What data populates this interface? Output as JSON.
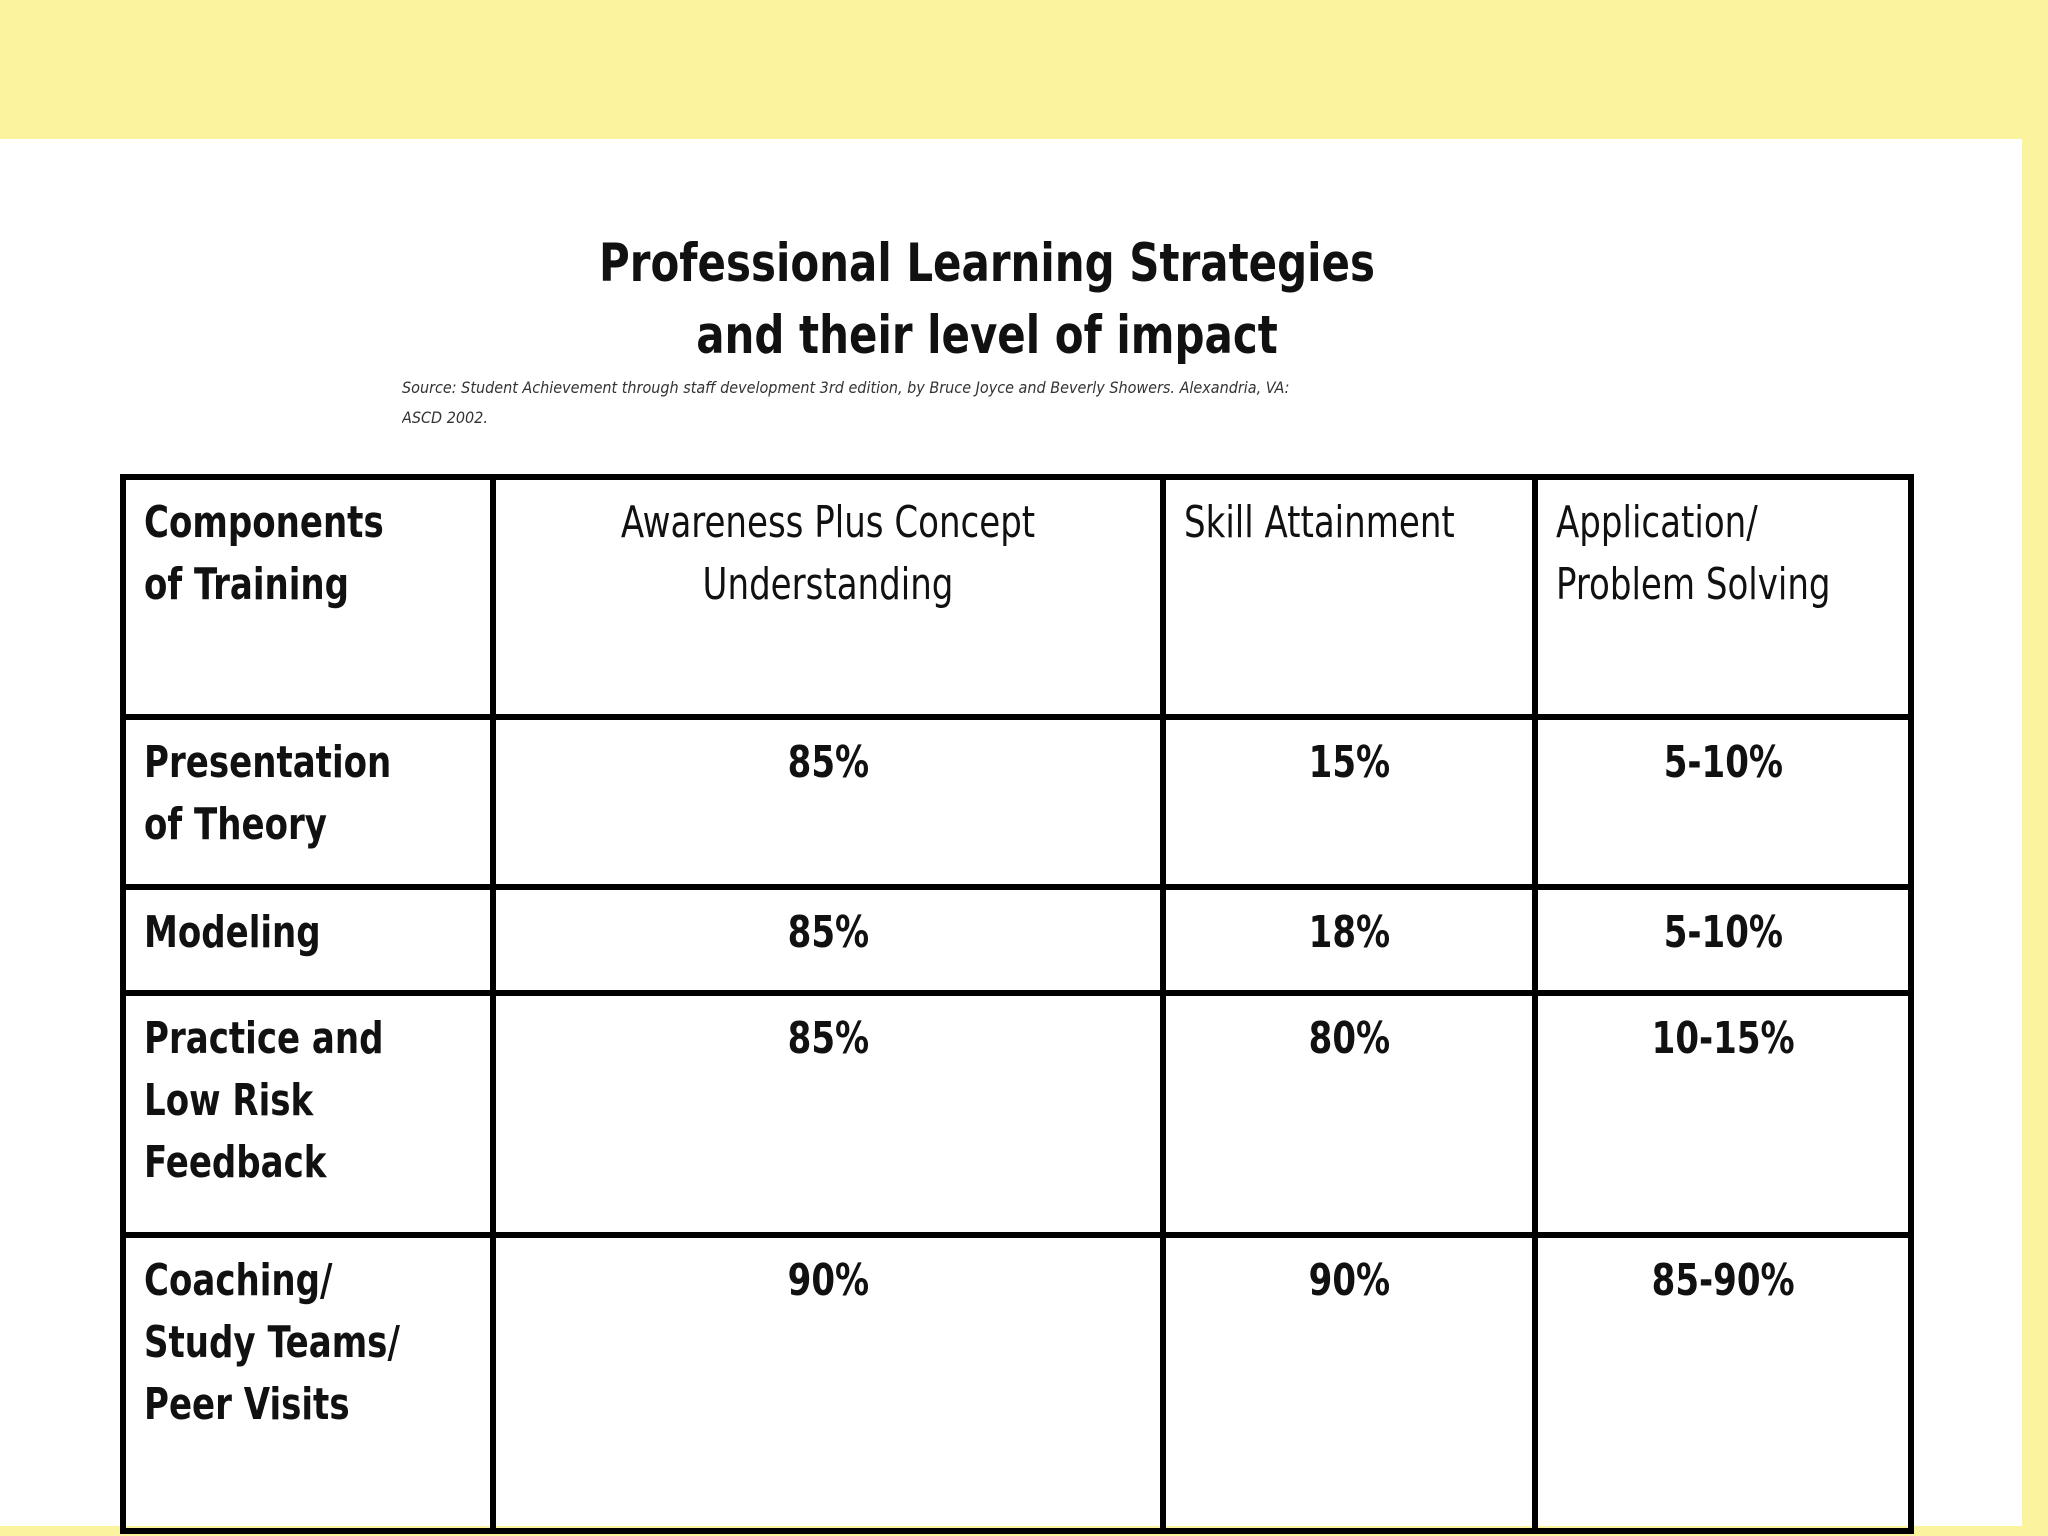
{
  "colors": {
    "background": "#fbf39d",
    "slide": "#ffffff",
    "border": "#000000"
  },
  "title": {
    "line1": "Professional Learning Strategies",
    "line2": "and their level of impact"
  },
  "source": {
    "line1": "Source: Student Achievement through staff development 3rd edition, by Bruce Joyce and Beverly Showers. Alexandria, VA:",
    "line2": "ASCD 2002."
  },
  "table": {
    "headers": [
      "Components of Training",
      "Awareness Plus Concept Understanding",
      "Skill Attainment",
      "Application/ Problem Solving"
    ],
    "rows": [
      {
        "component": "Presentation of Theory",
        "values": [
          "85%",
          "15%",
          "5-10%"
        ]
      },
      {
        "component": "Modeling",
        "values": [
          "85%",
          "18%",
          "5-10%"
        ]
      },
      {
        "component": "Practice and Low Risk Feedback",
        "values": [
          "85%",
          "80%",
          "10-15%"
        ]
      },
      {
        "component": "Coaching/ Study Teams/ Peer Visits",
        "values": [
          "90%",
          "90%",
          "85-90%"
        ]
      }
    ]
  }
}
